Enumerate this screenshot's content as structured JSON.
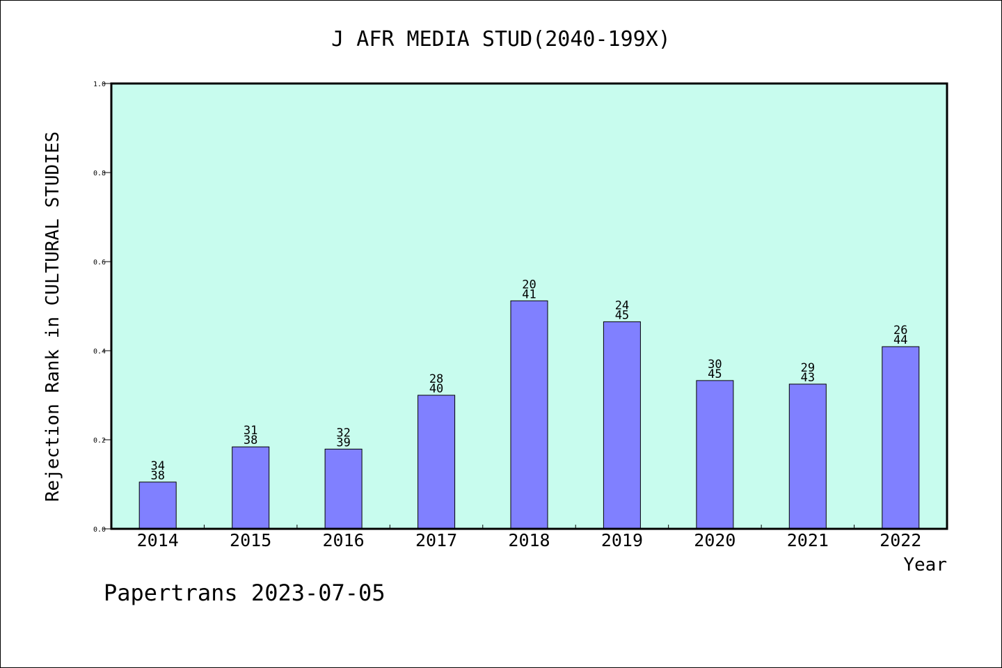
{
  "chart_data": {
    "type": "bar",
    "title": "J AFR MEDIA STUD(2040-199X)",
    "xlabel": "Year",
    "ylabel": "Rejection Rank in CULTURAL STUDIES",
    "categories": [
      "2014",
      "2015",
      "2016",
      "2017",
      "2018",
      "2019",
      "2020",
      "2021",
      "2022"
    ],
    "values": [
      0.105,
      0.184,
      0.179,
      0.3,
      0.512,
      0.465,
      0.333,
      0.325,
      0.409
    ],
    "bar_labels_top": [
      "34",
      "31",
      "32",
      "28",
      "20",
      "24",
      "30",
      "29",
      "26"
    ],
    "bar_labels_bottom": [
      "38",
      "38",
      "39",
      "40",
      "41",
      "45",
      "45",
      "43",
      "44"
    ],
    "ylim": [
      0,
      1.0
    ],
    "yticks": [
      "0.0",
      "0.2",
      "0.4",
      "0.6",
      "0.8",
      "1.0"
    ],
    "grid": false,
    "legend": "none",
    "colors": {
      "plot_background": "#c8fcee",
      "bar_fill": "#8080ff",
      "bar_stroke": "#000000",
      "axis": "#000000"
    }
  },
  "footer": {
    "credit": "Papertrans 2023-07-05"
  }
}
